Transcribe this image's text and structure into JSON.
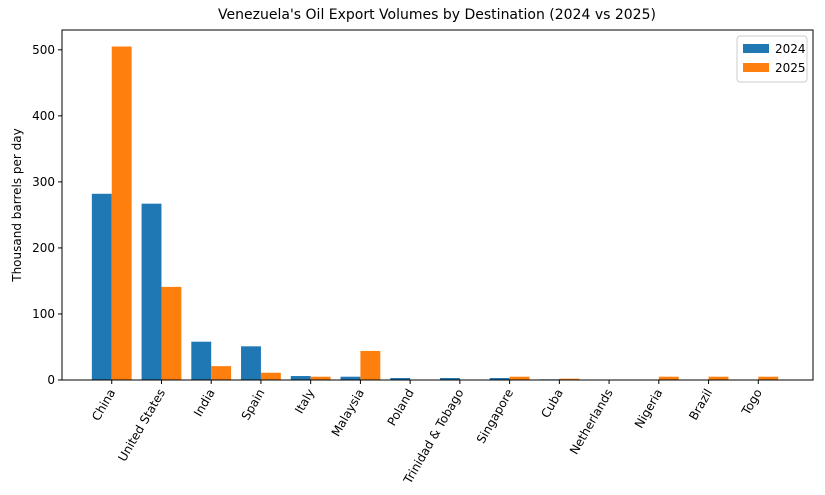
{
  "chart_data": {
    "type": "bar",
    "title": "Venezuela's Oil Export Volumes by Destination (2024 vs 2025)",
    "y_label": "Thousand barrels per day",
    "categories": [
      "China",
      "United States",
      "India",
      "Spain",
      "Italy",
      "Malaysia",
      "Poland",
      "Trinidad & Tobago",
      "Singapore",
      "Cuba",
      "Netherlands",
      "Nigeria",
      "Brazil",
      "Togo"
    ],
    "series": [
      {
        "name": "2024",
        "color": "#1f77b4",
        "values": [
          282,
          267,
          58,
          51,
          6,
          5,
          3,
          3,
          3,
          1,
          0,
          0,
          0,
          0
        ]
      },
      {
        "name": "2025",
        "color": "#ff7f0e",
        "values": [
          505,
          141,
          21,
          11,
          5,
          44,
          0,
          0,
          5,
          2,
          0,
          5,
          5,
          5
        ]
      }
    ],
    "ylim": [
      0,
      530
    ],
    "yticks": [
      0,
      100,
      200,
      300,
      400,
      500
    ],
    "legend": "upper right"
  }
}
